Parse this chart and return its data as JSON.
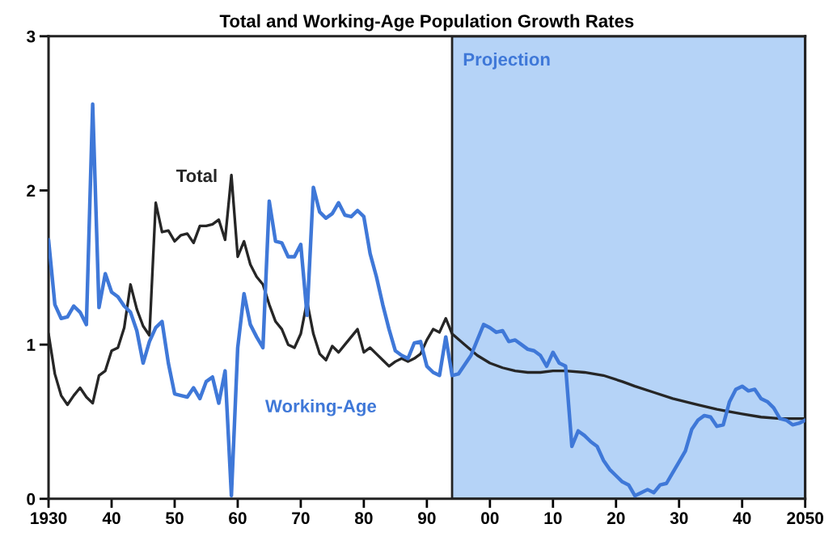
{
  "chart_data": {
    "type": "line",
    "title": "Total and Working-Age Population Growth Rates",
    "xlim": [
      1930,
      2050
    ],
    "xticks": [
      {
        "value": 1930,
        "label": "1930"
      },
      {
        "value": 1940,
        "label": "40"
      },
      {
        "value": 1950,
        "label": "50"
      },
      {
        "value": 1960,
        "label": "60"
      },
      {
        "value": 1970,
        "label": "70"
      },
      {
        "value": 1980,
        "label": "80"
      },
      {
        "value": 1990,
        "label": "90"
      },
      {
        "value": 2000,
        "label": "00"
      },
      {
        "value": 2010,
        "label": "10"
      },
      {
        "value": 2020,
        "label": "20"
      },
      {
        "value": 2030,
        "label": "30"
      },
      {
        "value": 2040,
        "label": "40"
      },
      {
        "value": 2050,
        "label": "2050"
      }
    ],
    "ylim": [
      0,
      3
    ],
    "yticks": [
      0,
      1,
      2,
      3
    ],
    "grid": false,
    "legend": false,
    "marker": "none",
    "line_style": "solid",
    "bands": [
      {
        "axis": "x",
        "from": 1994,
        "to": 2050,
        "label": "Projection",
        "color": "#b5d3f7"
      }
    ],
    "series": [
      {
        "name": "Total",
        "color": "#262626",
        "x": [
          1930,
          1931,
          1932,
          1933,
          1934,
          1935,
          1936,
          1937,
          1938,
          1939,
          1940,
          1941,
          1942,
          1943,
          1944,
          1945,
          1946,
          1947,
          1948,
          1949,
          1950,
          1951,
          1952,
          1953,
          1954,
          1955,
          1956,
          1957,
          1958,
          1959,
          1960,
          1961,
          1962,
          1963,
          1964,
          1965,
          1966,
          1967,
          1968,
          1969,
          1970,
          1971,
          1972,
          1973,
          1974,
          1975,
          1976,
          1977,
          1978,
          1979,
          1980,
          1981,
          1982,
          1983,
          1984,
          1985,
          1986,
          1987,
          1988,
          1989,
          1990,
          1991,
          1992,
          1993,
          1994,
          1996,
          1998,
          2000,
          2002,
          2004,
          2006,
          2008,
          2010,
          2012,
          2015,
          2018,
          2021,
          2023,
          2026,
          2029,
          2033,
          2036,
          2040,
          2043,
          2046,
          2050
        ],
        "values": [
          1.07,
          0.81,
          0.67,
          0.61,
          0.67,
          0.72,
          0.66,
          0.62,
          0.8,
          0.83,
          0.96,
          0.98,
          1.11,
          1.39,
          1.23,
          1.12,
          1.06,
          1.92,
          1.73,
          1.74,
          1.67,
          1.71,
          1.72,
          1.66,
          1.77,
          1.77,
          1.78,
          1.81,
          1.68,
          2.1,
          1.57,
          1.67,
          1.52,
          1.44,
          1.39,
          1.26,
          1.15,
          1.1,
          1.0,
          0.98,
          1.07,
          1.28,
          1.07,
          0.94,
          0.9,
          0.99,
          0.95,
          1.0,
          1.05,
          1.1,
          0.95,
          0.98,
          0.94,
          0.9,
          0.86,
          0.89,
          0.91,
          0.89,
          0.91,
          0.94,
          1.03,
          1.1,
          1.08,
          1.17,
          1.07,
          1.0,
          0.93,
          0.88,
          0.85,
          0.83,
          0.82,
          0.82,
          0.83,
          0.83,
          0.82,
          0.8,
          0.76,
          0.73,
          0.69,
          0.65,
          0.61,
          0.58,
          0.55,
          0.53,
          0.52,
          0.52
        ]
      },
      {
        "name": "Working-Age",
        "color": "#3f78d8",
        "x": [
          1930,
          1931,
          1932,
          1933,
          1934,
          1935,
          1936,
          1937,
          1938,
          1939,
          1940,
          1941,
          1942,
          1943,
          1944,
          1945,
          1946,
          1947,
          1948,
          1949,
          1950,
          1951,
          1952,
          1953,
          1954,
          1955,
          1956,
          1957,
          1958,
          1959,
          1960,
          1961,
          1962,
          1963,
          1964,
          1965,
          1966,
          1967,
          1968,
          1969,
          1970,
          1971,
          1972,
          1973,
          1974,
          1975,
          1976,
          1977,
          1978,
          1979,
          1980,
          1981,
          1982,
          1983,
          1984,
          1985,
          1986,
          1987,
          1988,
          1989,
          1990,
          1991,
          1992,
          1993,
          1994,
          1995,
          1996,
          1997,
          1998,
          1999,
          2000,
          2001,
          2002,
          2003,
          2004,
          2005,
          2006,
          2007,
          2008,
          2009,
          2010,
          2011,
          2012,
          2013,
          2014,
          2015,
          2016,
          2017,
          2018,
          2019,
          2020,
          2021,
          2022,
          2023,
          2024,
          2025,
          2026,
          2027,
          2028,
          2029,
          2030,
          2031,
          2032,
          2033,
          2034,
          2035,
          2036,
          2037,
          2038,
          2039,
          2040,
          2041,
          2042,
          2043,
          2044,
          2045,
          2046,
          2047,
          2048,
          2049,
          2050
        ],
        "values": [
          1.68,
          1.26,
          1.17,
          1.18,
          1.25,
          1.21,
          1.13,
          2.56,
          1.24,
          1.46,
          1.34,
          1.31,
          1.25,
          1.21,
          1.09,
          0.88,
          1.02,
          1.11,
          1.15,
          0.88,
          0.68,
          0.67,
          0.66,
          0.72,
          0.65,
          0.76,
          0.79,
          0.62,
          0.83,
          0.02,
          0.98,
          1.33,
          1.13,
          1.05,
          0.98,
          1.93,
          1.67,
          1.66,
          1.57,
          1.57,
          1.65,
          1.19,
          2.02,
          1.86,
          1.82,
          1.85,
          1.92,
          1.84,
          1.83,
          1.87,
          1.83,
          1.59,
          1.44,
          1.26,
          1.1,
          0.96,
          0.93,
          0.91,
          1.01,
          1.02,
          0.86,
          0.82,
          0.8,
          1.05,
          0.8,
          0.81,
          0.87,
          0.93,
          1.03,
          1.13,
          1.11,
          1.08,
          1.09,
          1.02,
          1.03,
          1.0,
          0.97,
          0.96,
          0.93,
          0.86,
          0.95,
          0.88,
          0.86,
          0.34,
          0.44,
          0.41,
          0.37,
          0.34,
          0.25,
          0.19,
          0.15,
          0.11,
          0.09,
          0.02,
          0.04,
          0.06,
          0.04,
          0.09,
          0.1,
          0.17,
          0.24,
          0.31,
          0.45,
          0.51,
          0.54,
          0.53,
          0.47,
          0.48,
          0.63,
          0.71,
          0.73,
          0.7,
          0.71,
          0.65,
          0.63,
          0.59,
          0.52,
          0.51,
          0.48,
          0.49,
          0.51
        ]
      }
    ]
  }
}
